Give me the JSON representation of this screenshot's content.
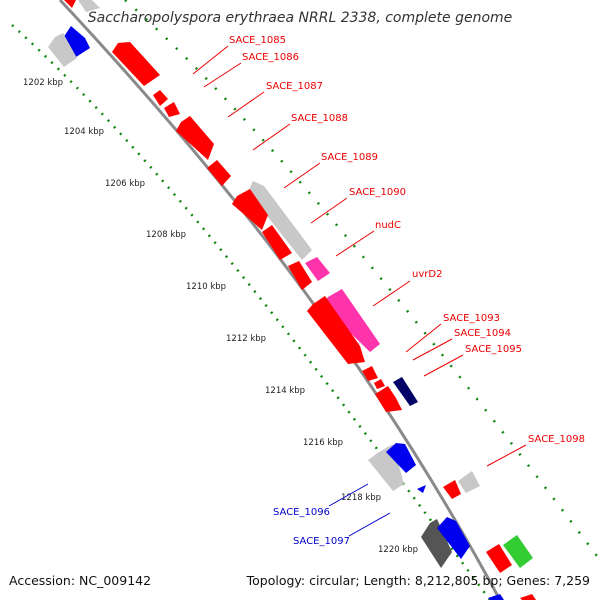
{
  "title": "Saccharopolyspora erythraea NRRL 2338, complete genome",
  "footer": {
    "accession": "Accession: NC_009142",
    "summary": "Topology: circular; Length: 8,212,805 bp; Genes: 7,259"
  },
  "ticks": [
    "1202 kbp",
    "1204 kbp",
    "1206 kbp",
    "1208 kbp",
    "1210 kbp",
    "1212 kbp",
    "1214 kbp",
    "1216 kbp",
    "1218 kbp",
    "1220 kbp"
  ],
  "forward_labels": [
    "SACE_1085",
    "SACE_1086",
    "SACE_1087",
    "SACE_1088",
    "SACE_1089",
    "SACE_1090",
    "nudC",
    "uvrD2",
    "SACE_1093",
    "SACE_1094",
    "SACE_1095",
    "SACE_1098"
  ],
  "reverse_labels": [
    "SACE_1096",
    "SACE_1097"
  ],
  "colors": {
    "gene_red": "#ff0000",
    "gene_blue": "#0000ee",
    "gene_gray": "#c8c8c8",
    "gene_magenta": "#ff33aa",
    "gene_green": "#33cc33",
    "gene_dark_gray": "#555555",
    "gene_navy": "#000066",
    "backbone": "#888888",
    "tick_green": "#118811",
    "label_red": "#ee0000",
    "label_blue": "#0000cc"
  }
}
